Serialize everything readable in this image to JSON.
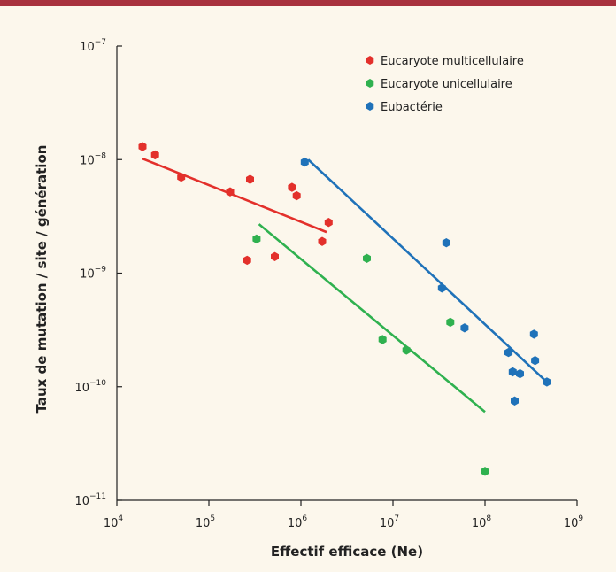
{
  "chart_data": {
    "type": "scatter",
    "title": "",
    "xlabel": "Effectif efficace (Ne)",
    "ylabel": "Taux de mutation / site / génération",
    "x_scale": "log",
    "y_scale": "log",
    "xlim": [
      10000,
      1000000000
    ],
    "ylim": [
      1e-11,
      1e-07
    ],
    "x_ticks": [
      {
        "base": "10",
        "exp": "4",
        "value": 10000
      },
      {
        "base": "10",
        "exp": "5",
        "value": 100000
      },
      {
        "base": "10",
        "exp": "6",
        "value": 1000000
      },
      {
        "base": "10",
        "exp": "7",
        "value": 10000000
      },
      {
        "base": "10",
        "exp": "8",
        "value": 100000000
      },
      {
        "base": "10",
        "exp": "9",
        "value": 1000000000
      }
    ],
    "y_ticks": [
      {
        "base": "10",
        "exp": "−7",
        "value": 1e-07
      },
      {
        "base": "10",
        "exp": "−8",
        "value": 1e-08
      },
      {
        "base": "10",
        "exp": "−9",
        "value": 1e-09
      },
      {
        "base": "10",
        "exp": "−10",
        "value": 1e-10
      },
      {
        "base": "10",
        "exp": "−11",
        "value": 1e-11
      }
    ],
    "grid": false,
    "legend_position": "top-right",
    "series": [
      {
        "name": "Eucaryote multicellulaire",
        "color": "#e3302b",
        "points": [
          [
            19000,
            1.3e-08
          ],
          [
            26000,
            1.1e-08
          ],
          [
            50000,
            7e-09
          ],
          [
            170000,
            5.2e-09
          ],
          [
            280000,
            6.7e-09
          ],
          [
            260000,
            1.3e-09
          ],
          [
            520000,
            1.4e-09
          ],
          [
            800000,
            5.7e-09
          ],
          [
            900000,
            4.8e-09
          ],
          [
            1700000,
            1.9e-09
          ],
          [
            2000000,
            2.8e-09
          ]
        ],
        "fit": [
          [
            19000,
            1.02e-08
          ],
          [
            1900000,
            2.3e-09
          ]
        ]
      },
      {
        "name": "Eucaryote unicellulaire",
        "color": "#2fb14f",
        "points": [
          [
            330000,
            2e-09
          ],
          [
            5200000,
            1.35e-09
          ],
          [
            7700000,
            2.6e-10
          ],
          [
            14000000,
            2.1e-10
          ],
          [
            42000000,
            3.7e-10
          ],
          [
            100000000,
            1.8e-11
          ]
        ],
        "fit": [
          [
            350000,
            2.7e-09
          ],
          [
            100000000,
            6e-11
          ]
        ]
      },
      {
        "name": "Eubactérie",
        "color": "#1f72b9",
        "points": [
          [
            1100000,
            9.5e-09
          ],
          [
            38000000,
            1.85e-09
          ],
          [
            34000000,
            7.4e-10
          ],
          [
            60000000,
            3.3e-10
          ],
          [
            180000000,
            2e-10
          ],
          [
            200000000,
            1.35e-10
          ],
          [
            240000000,
            1.3e-10
          ],
          [
            340000000,
            2.9e-10
          ],
          [
            350000000,
            1.7e-10
          ],
          [
            470000000,
            1.1e-10
          ],
          [
            210000000,
            7.5e-11
          ]
        ],
        "fit": [
          [
            1200000,
            1e-08
          ],
          [
            500000000,
            1.05e-10
          ]
        ]
      }
    ]
  }
}
